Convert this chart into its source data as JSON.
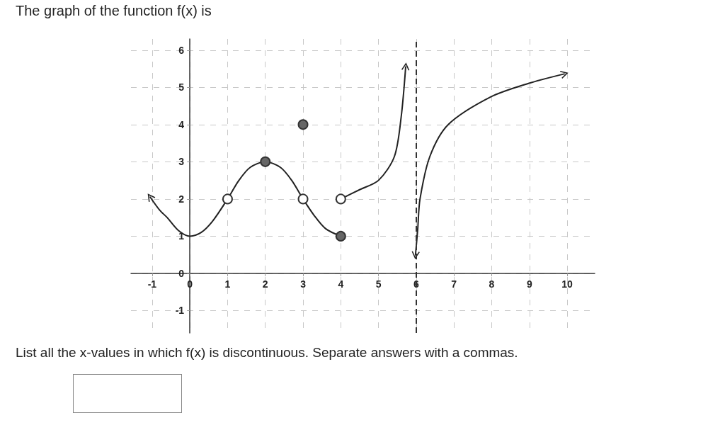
{
  "chart_data": {
    "type": "line",
    "title": "The graph of the function f(x) is",
    "annotations": [
      "List all the x-values in which f(x) is discontinuous. Separate answers with a commas."
    ],
    "xlim": [
      -1.56,
      10.73
    ],
    "ylim": [
      -1.6,
      6.3
    ],
    "xticks": [
      -1,
      0,
      1,
      2,
      3,
      4,
      5,
      6,
      7,
      8,
      9,
      10
    ],
    "yticks": [
      -1,
      0,
      1,
      2,
      3,
      4,
      5,
      6
    ],
    "grid": true,
    "line_style": "solid",
    "ref_lines": [
      {
        "axis": "x",
        "value": 6,
        "color": "#333333",
        "line_style": "dashed"
      }
    ],
    "series": [
      {
        "color": "#222222",
        "x": [
          -1.05,
          -0.8,
          -0.6,
          -0.3,
          0,
          0.3,
          0.6,
          1,
          1.3,
          1.6,
          2,
          2.4,
          2.7,
          3,
          3.3,
          3.6,
          4
        ],
        "values": [
          2.05,
          1.7,
          1.5,
          1.15,
          1,
          1.1,
          1.4,
          2,
          2.5,
          2.85,
          3,
          2.85,
          2.5,
          2,
          1.55,
          1.2,
          1
        ]
      },
      {
        "color": "#222222",
        "x": [
          4,
          4.5,
          5,
          5.42,
          5.6,
          5.72
        ],
        "values": [
          2,
          2.25,
          2.5,
          3.14,
          4.2,
          5.55
        ]
      },
      {
        "color": "#222222",
        "x": [
          5.98,
          6.04,
          6.1,
          6.36,
          6.85,
          7.97,
          8.99,
          9.92
        ],
        "values": [
          0.5,
          1.2,
          2,
          3.14,
          4,
          4.74,
          5.11,
          5.36
        ]
      },
      {
        "type": "scatter",
        "marker": "circle",
        "color": "#666666",
        "x": [
          2,
          4,
          3
        ],
        "values": [
          3,
          1,
          4
        ]
      },
      {
        "type": "scatter",
        "marker": "circle",
        "color": "#ffffff",
        "x": [
          1,
          3,
          4
        ],
        "values": [
          2,
          2,
          2
        ]
      }
    ]
  }
}
